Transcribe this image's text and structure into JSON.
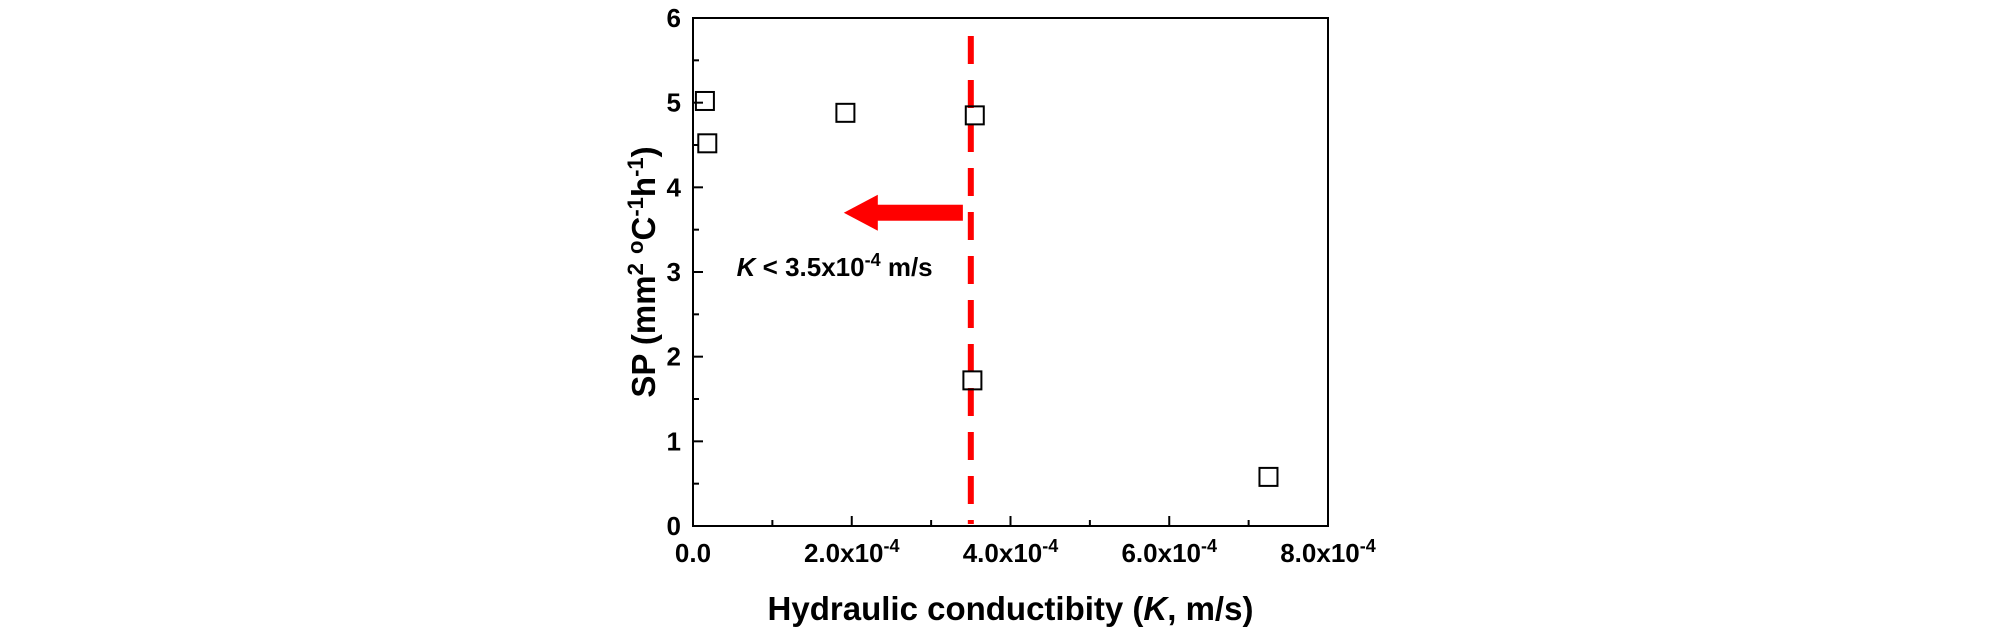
{
  "chart_data": {
    "type": "scatter",
    "title": "",
    "xlabel": {
      "prefix": "Hydraulic conductibity (",
      "italic": "K",
      "suffix": ", m/s)"
    },
    "ylabel": {
      "main": "SP (mm",
      "sup1": "2",
      "gap1": " ",
      "sup2": "o",
      "mid": "C",
      "sup3": "-1",
      "mid2": "h",
      "sup4": "-1",
      "end": ")"
    },
    "xlim": [
      0,
      0.0008
    ],
    "ylim": [
      0,
      6
    ],
    "x_ticks": [
      0,
      0.0002,
      0.0004,
      0.0006,
      0.0008
    ],
    "x_tick_labels": [
      {
        "base": "0.0",
        "exp": ""
      },
      {
        "base": "2.0x10",
        "exp": "-4"
      },
      {
        "base": "4.0x10",
        "exp": "-4"
      },
      {
        "base": "6.0x10",
        "exp": "-4"
      },
      {
        "base": "8.0x10",
        "exp": "-4"
      }
    ],
    "y_ticks": [
      0,
      1,
      2,
      3,
      4,
      5,
      6
    ],
    "y_tick_labels": [
      "0",
      "1",
      "2",
      "3",
      "4",
      "5",
      "6"
    ],
    "grid": false,
    "series": [
      {
        "marker": "open-square",
        "color": "#000000",
        "points": [
          {
            "x": 1.5e-05,
            "y": 5.02
          },
          {
            "x": 1.8e-05,
            "y": 4.52
          },
          {
            "x": 0.000192,
            "y": 4.88
          },
          {
            "x": 0.000355,
            "y": 4.85
          },
          {
            "x": 0.000352,
            "y": 1.72
          },
          {
            "x": 0.000725,
            "y": 0.58
          }
        ]
      }
    ],
    "threshold": {
      "x": 0.00035,
      "color": "#ff0000",
      "style": "dashed"
    },
    "arrow": {
      "from_x": 0.00034,
      "to_x": 0.00019,
      "y": 3.7,
      "color": "#ff0000"
    },
    "annotation": {
      "italic": "K",
      "text": " < 3.5x10",
      "sup": "-4",
      "suffix": " m/s",
      "x": 5.5e-05,
      "y": 2.95
    }
  }
}
